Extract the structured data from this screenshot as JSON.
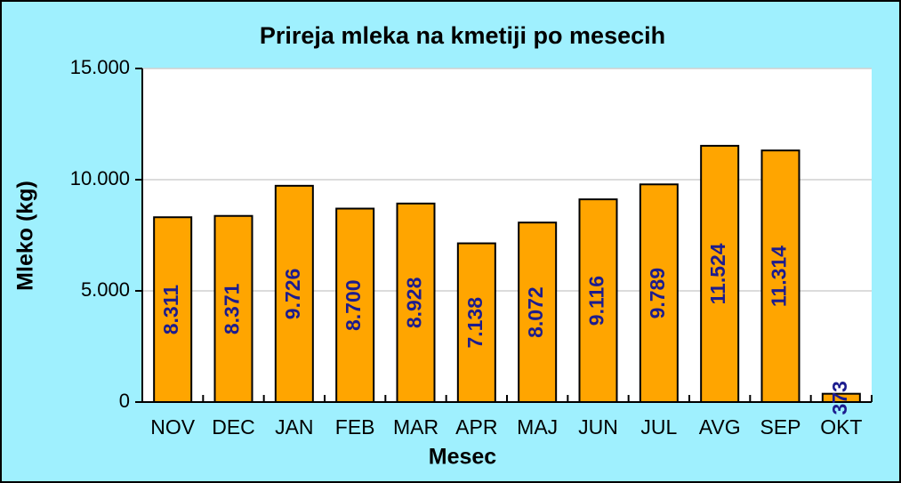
{
  "chart_data": {
    "type": "bar",
    "title": "Prireja mleka na kmetiji po mesecih",
    "x_label": "Mesec",
    "y_label": "Mleko (kg)",
    "categories": [
      "NOV",
      "DEC",
      "JAN",
      "FEB",
      "MAR",
      "APR",
      "MAJ",
      "JUN",
      "JUL",
      "AVG",
      "SEP",
      "OKT"
    ],
    "values": [
      8311,
      8371,
      9726,
      8700,
      8928,
      7138,
      8072,
      9116,
      9789,
      11524,
      11314,
      373
    ],
    "value_labels": [
      "8.311",
      "8.371",
      "9.726",
      "8.700",
      "8.928",
      "7.138",
      "8.072",
      "9.116",
      "9.789",
      "11.524",
      "11.314",
      "373"
    ],
    "color": "#ffa500",
    "ylim": [
      0,
      15000
    ],
    "yticks": [
      0,
      {
        "value": 5000,
        "label": "5.000"
      },
      {
        "value": 10000,
        "label": "10.000"
      },
      {
        "value": 15000,
        "label": "15.000"
      }
    ],
    "grid": true
  }
}
